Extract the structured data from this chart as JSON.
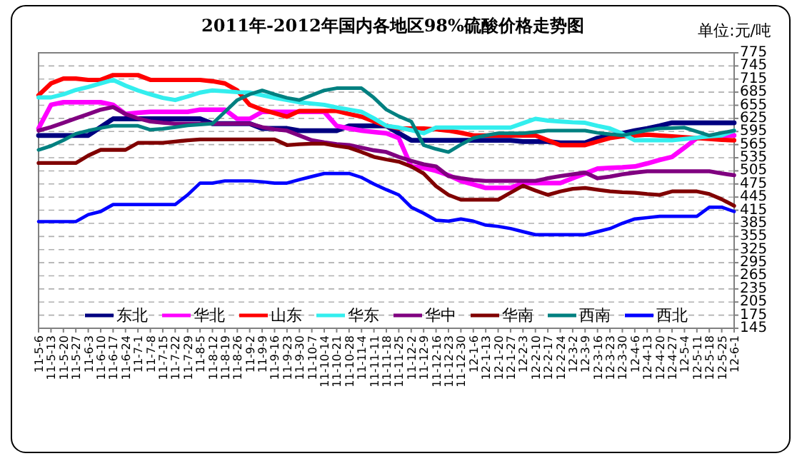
{
  "chart_data": {
    "type": "line",
    "title": "2011年-2012年国内各地区98%硫酸价格走势图",
    "annotations": [
      "单位:元/吨"
    ],
    "categories": [
      "11-5-6",
      "11-5-13",
      "11-5-20",
      "11-5-27",
      "11-6-3",
      "11-6-10",
      "11-6-17",
      "11-6-24",
      "11-7-1",
      "11-7-8",
      "11-7-15",
      "11-7-22",
      "11-7-29",
      "11-8-5",
      "11-8-12",
      "11-8-19",
      "11-8-26",
      "11-9-2",
      "11-9-9",
      "11-9-16",
      "11-9-23",
      "11-9-30",
      "11-10-7",
      "11-10-14",
      "11-10-21",
      "11-10-28",
      "11-11-4",
      "11-11-11",
      "11-11-18",
      "11-11-25",
      "11-12-2",
      "11-12-9",
      "11-12-16",
      "11-12-23",
      "11-12-30",
      "12-1-6",
      "12-1-13",
      "12-1-20",
      "12-1-27",
      "12-2-3",
      "12-2-10",
      "12-2-17",
      "12-2-24",
      "12-3-2",
      "12-3-9",
      "12-3-16",
      "12-3-23",
      "12-3-30",
      "12-4-6",
      "12-4-13",
      "12-4-20",
      "12-4-27",
      "12-5-4",
      "12-5-11",
      "12-5-18",
      "12-5-25",
      "12-6-1"
    ],
    "series": [
      {
        "name": "东北",
        "color": "#000080",
        "values": [
          586,
          586,
          586,
          586,
          586,
          605,
          624,
          624,
          624,
          624,
          624,
          624,
          624,
          624,
          613,
          613,
          613,
          613,
          602,
          602,
          602,
          597,
          597,
          597,
          597,
          608,
          608,
          608,
          608,
          591,
          575,
          575,
          575,
          575,
          575,
          575,
          575,
          575,
          575,
          572,
          572,
          572,
          569,
          569,
          569,
          580,
          586,
          591,
          597,
          602,
          608,
          615,
          615,
          615,
          615,
          615,
          615
        ]
      },
      {
        "name": "华北",
        "color": "#ff00ff",
        "values": [
          602,
          656,
          662,
          662,
          662,
          662,
          656,
          635,
          638,
          640,
          640,
          640,
          640,
          645,
          645,
          645,
          624,
          624,
          640,
          640,
          640,
          640,
          640,
          640,
          608,
          602,
          597,
          594,
          591,
          580,
          515,
          512,
          505,
          495,
          482,
          474,
          466,
          466,
          466,
          477,
          477,
          477,
          477,
          488,
          499,
          510,
          512,
          513,
          515,
          522,
          530,
          537,
          558,
          580,
          584,
          586,
          586
        ]
      },
      {
        "name": "山东",
        "color": "#ff0000",
        "values": [
          678,
          705,
          716,
          716,
          713,
          713,
          724,
          724,
          724,
          713,
          713,
          713,
          713,
          713,
          710,
          705,
          689,
          656,
          645,
          637,
          629,
          642,
          642,
          642,
          642,
          635,
          629,
          618,
          608,
          602,
          602,
          602,
          600,
          597,
          592,
          586,
          586,
          586,
          586,
          586,
          586,
          575,
          564,
          564,
          564,
          572,
          580,
          584,
          586,
          588,
          586,
          584,
          582,
          580,
          578,
          576,
          575
        ]
      },
      {
        "name": "华东",
        "color": "#33eeee",
        "values": [
          673,
          673,
          680,
          690,
          697,
          705,
          713,
          700,
          689,
          680,
          672,
          667,
          675,
          684,
          689,
          687,
          685,
          684,
          678,
          672,
          667,
          662,
          659,
          656,
          650,
          645,
          640,
          625,
          608,
          604,
          598,
          591,
          604,
          604,
          604,
          604,
          604,
          604,
          604,
          614,
          624,
          620,
          618,
          616,
          615,
          608,
          602,
          590,
          575,
          575,
          575,
          575,
          578,
          581,
          584,
          586,
          597
        ]
      },
      {
        "name": "华中",
        "color": "#800080",
        "values": [
          597,
          605,
          615,
          625,
          635,
          645,
          651,
          635,
          625,
          618,
          615,
          613,
          613,
          613,
          613,
          613,
          613,
          613,
          605,
          600,
          597,
          586,
          575,
          570,
          566,
          564,
          558,
          552,
          548,
          537,
          528,
          520,
          515,
          493,
          488,
          484,
          482,
          482,
          482,
          482,
          482,
          488,
          493,
          497,
          501,
          488,
          492,
          497,
          501,
          504,
          504,
          504,
          504,
          504,
          504,
          499,
          495
        ]
      },
      {
        "name": "华南",
        "color": "#800000",
        "values": [
          523,
          523,
          523,
          523,
          540,
          553,
          553,
          553,
          569,
          569,
          569,
          572,
          575,
          577,
          577,
          577,
          577,
          577,
          577,
          577,
          564,
          566,
          567,
          567,
          562,
          558,
          548,
          537,
          531,
          526,
          515,
          499,
          470,
          450,
          439,
          439,
          439,
          439,
          455,
          471,
          460,
          450,
          458,
          464,
          466,
          462,
          458,
          456,
          455,
          452,
          450,
          458,
          458,
          458,
          452,
          440,
          425
        ]
      },
      {
        "name": "西南",
        "color": "#008080",
        "values": [
          553,
          562,
          575,
          590,
          597,
          603,
          608,
          608,
          608,
          599,
          601,
          605,
          609,
          611,
          613,
          640,
          667,
          680,
          689,
          680,
          672,
          667,
          678,
          689,
          694,
          694,
          694,
          672,
          645,
          630,
          618,
          564,
          555,
          548,
          565,
          580,
          586,
          591,
          591,
          591,
          594,
          597,
          597,
          597,
          597,
          592,
          589,
          586,
          592,
          598,
          602,
          603,
          604,
          595,
          586,
          592,
          597
        ]
      },
      {
        "name": "西北",
        "color": "#0000ff",
        "values": [
          389,
          389,
          389,
          389,
          405,
          412,
          428,
          428,
          428,
          428,
          428,
          428,
          450,
          477,
          477,
          482,
          482,
          482,
          480,
          477,
          477,
          485,
          492,
          499,
          499,
          499,
          490,
          475,
          462,
          450,
          422,
          408,
          392,
          390,
          395,
          390,
          381,
          378,
          373,
          366,
          359,
          359,
          359,
          359,
          359,
          366,
          373,
          385,
          395,
          398,
          401,
          401,
          401,
          401,
          422,
          422,
          412
        ]
      }
    ],
    "ylim": [
      145,
      775
    ],
    "yticks": [
      145,
      175,
      205,
      235,
      265,
      295,
      325,
      355,
      385,
      415,
      445,
      475,
      505,
      535,
      565,
      595,
      625,
      655,
      685,
      715,
      745,
      775
    ],
    "grid": "y",
    "legend": "bottom"
  }
}
